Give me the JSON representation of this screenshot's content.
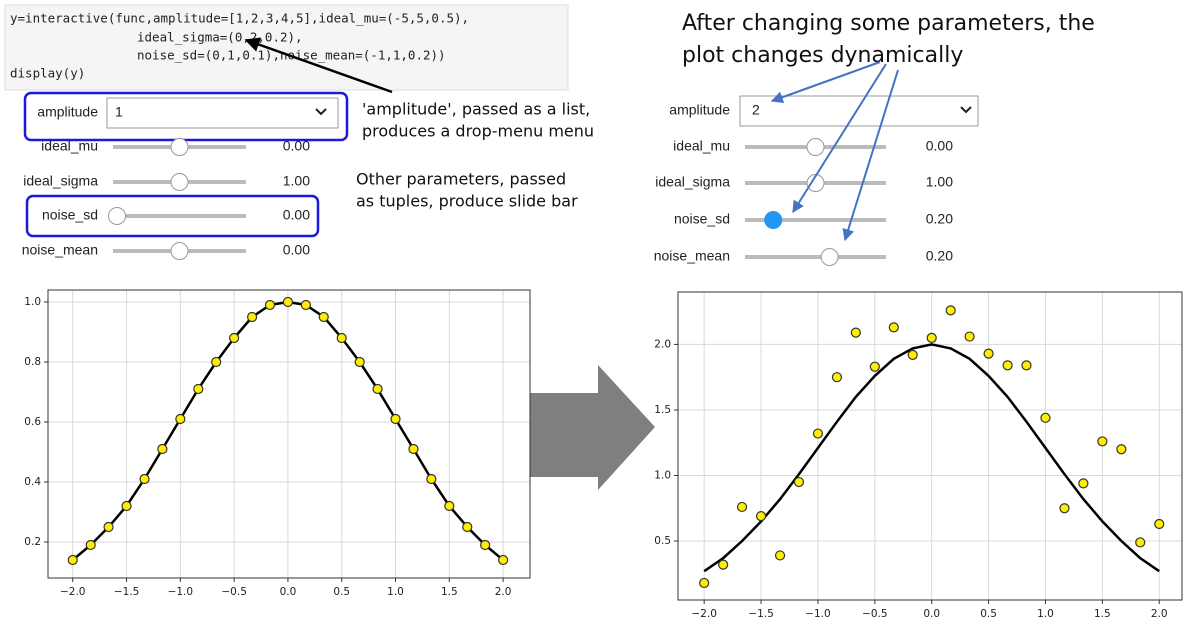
{
  "code": [
    "y=interactive(func,amplitude=[1,2,3,4,5],ideal_mu=(-5,5,0.5),",
    "ideal_sigma=(0,2,0.2),",
    "noise_sd=(0,1,0.1),noise_mean=(-1,1,0.2))",
    "display(y)"
  ],
  "widgets_before": {
    "labels": [
      "amplitude",
      "ideal_mu",
      "ideal_sigma",
      "noise_sd",
      "noise_mean"
    ],
    "dropdown": "1",
    "readouts": [
      "0.00",
      "1.00",
      "0.00",
      "0.00"
    ]
  },
  "widgets_after": {
    "labels": [
      "amplitude",
      "ideal_mu",
      "ideal_sigma",
      "noise_sd",
      "noise_mean"
    ],
    "dropdown": "2",
    "readouts": [
      "0.00",
      "1.00",
      "0.20",
      "0.20"
    ]
  },
  "annotations": {
    "dropdown_note": [
      "'amplitude', passed as a list,",
      "produces a drop-menu menu"
    ],
    "slider_note": [
      "Other parameters, passed",
      "as tuples, produce slide bar"
    ],
    "change_note": [
      "After changing some parameters, the",
      "plot changes dynamically"
    ]
  },
  "chart_data": [
    {
      "type": "line",
      "x": [
        -2,
        -1.833,
        -1.667,
        -1.5,
        -1.333,
        -1.167,
        -1,
        -0.833,
        -0.667,
        -0.5,
        -0.333,
        -0.167,
        0,
        0.167,
        0.333,
        0.5,
        0.667,
        0.833,
        1,
        1.167,
        1.333,
        1.5,
        1.667,
        1.833,
        2
      ],
      "series": [
        {
          "color": "#000000",
          "values": [
            0.14,
            0.19,
            0.25,
            0.32,
            0.41,
            0.51,
            0.61,
            0.71,
            0.8,
            0.88,
            0.95,
            0.99,
            1,
            0.99,
            0.95,
            0.88,
            0.8,
            0.71,
            0.61,
            0.51,
            0.41,
            0.32,
            0.25,
            0.19,
            0.14
          ]
        },
        {
          "color": "#ffee00",
          "marker": "circle",
          "values": [
            0.14,
            0.19,
            0.25,
            0.32,
            0.41,
            0.51,
            0.61,
            0.71,
            0.8,
            0.88,
            0.95,
            0.99,
            1,
            0.99,
            0.95,
            0.88,
            0.8,
            0.71,
            0.61,
            0.51,
            0.41,
            0.32,
            0.25,
            0.19,
            0.14
          ]
        }
      ],
      "xlim": [
        -2.23,
        2.25
      ],
      "ylim": [
        0.08,
        1.04
      ],
      "xticks": [
        {
          "value": -2,
          "label": "−2.0"
        },
        {
          "value": -1.5,
          "label": "−1.5"
        },
        {
          "value": -1,
          "label": "−1.0"
        },
        {
          "value": -0.5,
          "label": "−0.5"
        },
        {
          "value": 0,
          "label": "0.0"
        },
        0.5,
        {
          "value": 1,
          "label": "1.0"
        },
        1.5,
        {
          "value": 2,
          "label": "2.0"
        }
      ],
      "yticks": [
        0.2,
        0.4,
        0.6,
        0.8,
        {
          "value": 1,
          "label": "1.0"
        }
      ],
      "grid": true
    },
    {
      "type": "line",
      "x": [
        -2,
        -1.833,
        -1.667,
        -1.5,
        -1.333,
        -1.167,
        -1,
        -0.833,
        -0.667,
        -0.5,
        -0.333,
        -0.167,
        0,
        0.167,
        0.333,
        0.5,
        0.667,
        0.833,
        1,
        1.167,
        1.333,
        1.5,
        1.667,
        1.833,
        2
      ],
      "series": [
        {
          "color": "#000000",
          "values": [
            0.27,
            0.37,
            0.5,
            0.65,
            0.82,
            1.01,
            1.21,
            1.41,
            1.6,
            1.76,
            1.89,
            1.97,
            2,
            1.97,
            1.89,
            1.76,
            1.6,
            1.41,
            1.21,
            1.01,
            0.82,
            0.65,
            0.5,
            0.37,
            0.27
          ]
        },
        {
          "color": "#ffee00",
          "marker": "circle",
          "values": [
            0.18,
            0.32,
            0.76,
            0.69,
            0.39,
            0.95,
            1.32,
            1.75,
            2.09,
            1.83,
            2.13,
            1.92,
            2.05,
            2.26,
            2.06,
            1.93,
            1.84,
            1.84,
            1.44,
            0.75,
            0.94,
            1.26,
            1.2,
            0.49,
            0.63
          ]
        }
      ],
      "xlim": [
        -2.23,
        2.2
      ],
      "ylim": [
        0.05,
        2.4
      ],
      "xticks": [
        {
          "value": -2,
          "label": "−2.0"
        },
        {
          "value": -1.5,
          "label": "−1.5"
        },
        {
          "value": -1,
          "label": "−1.0"
        },
        {
          "value": -0.5,
          "label": "−0.5"
        },
        {
          "value": 0,
          "label": "0.0"
        },
        0.5,
        {
          "value": 1,
          "label": "1.0"
        },
        1.5,
        {
          "value": 2,
          "label": "2.0"
        }
      ],
      "yticks": [
        0.5,
        {
          "value": 1,
          "label": "1.0"
        },
        1.5,
        {
          "value": 2,
          "label": "2.0"
        }
      ],
      "grid": true
    }
  ]
}
